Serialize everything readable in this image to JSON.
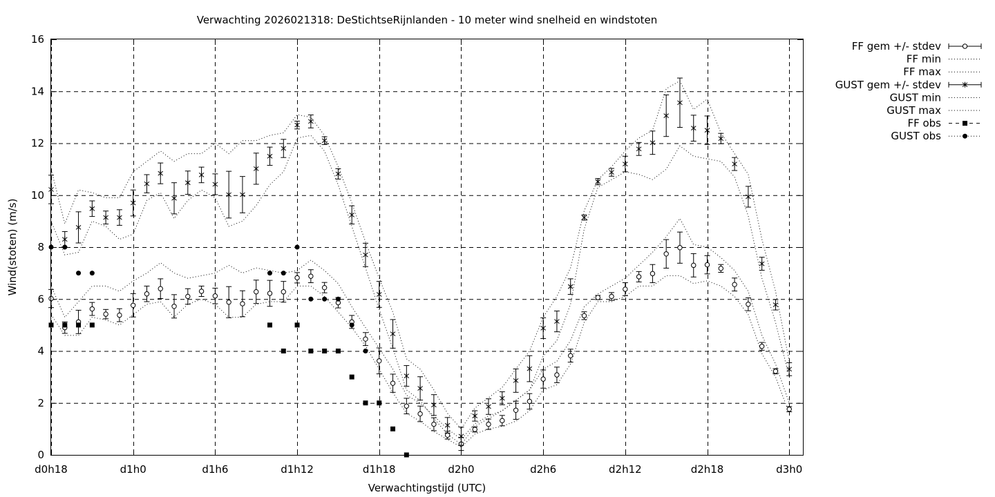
{
  "chart_data": {
    "type": "line",
    "title": "Verwachting 2026021318: DeStichtseRijnlanden - 10 meter wind snelheid en windstoten",
    "xlabel": "Verwachtingstijd (UTC)",
    "ylabel": "Wind(stoten) (m/s)",
    "xlim": [
      18,
      73
    ],
    "ylim": [
      0,
      16
    ],
    "x_ticks": [
      {
        "x": 18,
        "label": "d0h18"
      },
      {
        "x": 24,
        "label": "d1h0"
      },
      {
        "x": 30,
        "label": "d1h6"
      },
      {
        "x": 36,
        "label": "d1h12"
      },
      {
        "x": 42,
        "label": "d1h18"
      },
      {
        "x": 48,
        "label": "d2h0"
      },
      {
        "x": 54,
        "label": "d2h6"
      },
      {
        "x": 60,
        "label": "d2h12"
      },
      {
        "x": 66,
        "label": "d2h18"
      },
      {
        "x": 72,
        "label": "d3h0"
      }
    ],
    "y_ticks": [
      0,
      2,
      4,
      6,
      8,
      10,
      12,
      14,
      16
    ],
    "grid": true,
    "legend_position": "outside-right",
    "legend": [
      "FF gem +/- stdev",
      "FF min",
      "FF max",
      "GUST gem +/- stdev",
      "GUST min",
      "GUST max",
      "FF obs",
      "GUST obs"
    ],
    "x": [
      18,
      19,
      20,
      21,
      22,
      23,
      24,
      25,
      26,
      27,
      28,
      29,
      30,
      31,
      32,
      33,
      34,
      35,
      36,
      37,
      38,
      39,
      40,
      41,
      42,
      43,
      44,
      45,
      46,
      47,
      48,
      49,
      50,
      51,
      52,
      53,
      54,
      55,
      56,
      57,
      58,
      59,
      60,
      61,
      62,
      63,
      64,
      65,
      66,
      67,
      68,
      69,
      70,
      71,
      72
    ],
    "series": [
      {
        "name": "FF gem +/- stdev",
        "marker": "open-circle",
        "values": [
          6.02,
          4.9,
          5.12,
          5.62,
          5.42,
          5.38,
          5.76,
          6.2,
          6.4,
          5.72,
          6.1,
          6.3,
          6.12,
          5.88,
          5.82,
          6.28,
          6.22,
          6.28,
          6.82,
          6.88,
          6.44,
          5.86,
          5.12,
          4.46,
          3.62,
          2.76,
          1.88,
          1.58,
          1.18,
          0.76,
          0.42,
          0.98,
          1.18,
          1.32,
          1.72,
          2.06,
          2.92,
          3.08,
          3.82,
          5.36,
          6.06,
          6.1,
          6.38,
          6.86,
          6.98,
          7.74,
          7.98,
          7.3,
          7.32,
          7.18,
          6.56,
          5.8,
          4.18,
          3.22,
          1.76
        ],
        "stdev": [
          0.35,
          0.22,
          0.45,
          0.25,
          0.18,
          0.25,
          0.45,
          0.3,
          0.38,
          0.45,
          0.3,
          0.2,
          0.3,
          0.6,
          0.5,
          0.45,
          0.5,
          0.4,
          0.2,
          0.25,
          0.2,
          0.2,
          0.25,
          0.25,
          0.5,
          0.35,
          0.3,
          0.3,
          0.25,
          0.15,
          0.25,
          0.1,
          0.2,
          0.2,
          0.35,
          0.3,
          0.35,
          0.3,
          0.25,
          0.15,
          0.08,
          0.15,
          0.25,
          0.2,
          0.35,
          0.55,
          0.6,
          0.45,
          0.35,
          0.15,
          0.25,
          0.25,
          0.15,
          0.1,
          0.1
        ]
      },
      {
        "name": "FF min",
        "values": [
          5.4,
          4.6,
          4.6,
          5.3,
          5.2,
          5.0,
          5.4,
          5.8,
          5.9,
          5.3,
          5.8,
          6.0,
          5.8,
          5.3,
          5.3,
          5.8,
          5.9,
          5.9,
          6.5,
          6.5,
          6.1,
          5.5,
          4.9,
          4.2,
          3.3,
          2.4,
          1.6,
          1.3,
          0.9,
          0.6,
          0.3,
          0.8,
          1.0,
          1.1,
          1.3,
          1.7,
          2.5,
          2.7,
          3.5,
          5.1,
          5.9,
          5.9,
          6.1,
          6.5,
          6.5,
          6.9,
          6.9,
          6.6,
          6.7,
          6.5,
          6.1,
          5.4,
          3.9,
          3.0,
          1.6
        ]
      },
      {
        "name": "FF max",
        "values": [
          6.5,
          5.3,
          5.9,
          6.5,
          6.5,
          6.3,
          6.7,
          7.0,
          7.4,
          7.0,
          6.8,
          6.9,
          7.0,
          7.3,
          7.0,
          7.2,
          7.1,
          7.0,
          7.1,
          7.5,
          7.1,
          6.6,
          5.7,
          4.9,
          4.1,
          3.3,
          2.3,
          2.0,
          1.5,
          1.0,
          0.6,
          1.2,
          1.5,
          1.7,
          2.1,
          2.5,
          3.3,
          3.6,
          4.4,
          5.7,
          6.2,
          6.5,
          6.8,
          7.3,
          7.8,
          8.4,
          9.1,
          8.1,
          8.0,
          7.6,
          7.1,
          6.3,
          4.6,
          3.5,
          2.0
        ]
      },
      {
        "name": "GUST gem +/- stdev",
        "marker": "star",
        "values": [
          10.22,
          8.3,
          8.76,
          9.48,
          9.14,
          9.14,
          9.7,
          10.44,
          10.84,
          9.88,
          10.48,
          10.78,
          10.42,
          10.02,
          10.02,
          11.02,
          11.5,
          11.8,
          12.7,
          12.84,
          12.1,
          10.82,
          9.24,
          7.7,
          6.18,
          4.66,
          3.04,
          2.56,
          1.92,
          1.14,
          0.72,
          1.5,
          1.86,
          2.18,
          2.86,
          3.32,
          4.88,
          5.14,
          6.48,
          9.14,
          10.52,
          10.88,
          11.2,
          11.78,
          12.02,
          13.06,
          13.56,
          12.58,
          12.5,
          12.18,
          11.2,
          9.94,
          7.36,
          5.78,
          3.3
        ],
        "stdev": [
          0.55,
          0.3,
          0.6,
          0.3,
          0.25,
          0.3,
          0.5,
          0.35,
          0.4,
          0.6,
          0.45,
          0.3,
          0.4,
          0.9,
          0.7,
          0.6,
          0.35,
          0.35,
          0.15,
          0.25,
          0.15,
          0.2,
          0.35,
          0.45,
          0.5,
          0.55,
          0.4,
          0.45,
          0.4,
          0.3,
          0.35,
          0.2,
          0.3,
          0.25,
          0.45,
          0.5,
          0.4,
          0.4,
          0.3,
          0.1,
          0.12,
          0.15,
          0.3,
          0.25,
          0.45,
          0.8,
          0.95,
          0.5,
          0.55,
          0.2,
          0.25,
          0.4,
          0.25,
          0.2,
          0.25
        ]
      },
      {
        "name": "GUST min",
        "values": [
          9.0,
          7.7,
          7.8,
          9.0,
          8.8,
          8.3,
          8.5,
          9.8,
          10.1,
          9.1,
          9.8,
          10.2,
          9.9,
          8.8,
          9.0,
          9.6,
          10.4,
          10.9,
          12.2,
          12.3,
          11.7,
          10.4,
          8.8,
          7.2,
          5.6,
          4.1,
          2.5,
          2.1,
          1.4,
          0.8,
          0.4,
          1.1,
          1.4,
          1.7,
          2.1,
          2.5,
          3.8,
          4.4,
          5.8,
          8.7,
          10.3,
          10.6,
          10.9,
          10.8,
          10.6,
          11.0,
          11.9,
          11.5,
          11.4,
          11.3,
          10.7,
          9.2,
          6.8,
          5.1,
          3.0
        ]
      },
      {
        "name": "GUST max",
        "values": [
          11.0,
          8.9,
          10.2,
          10.1,
          9.9,
          9.9,
          10.9,
          11.3,
          11.7,
          11.3,
          11.6,
          11.6,
          12.0,
          11.6,
          12.1,
          12.1,
          12.3,
          12.4,
          13.1,
          13.0,
          12.3,
          11.1,
          9.7,
          8.2,
          6.8,
          5.5,
          3.7,
          3.3,
          2.5,
          1.6,
          1.0,
          1.8,
          2.2,
          2.6,
          3.3,
          4.0,
          5.3,
          6.1,
          7.2,
          9.4,
          10.6,
          11.1,
          11.7,
          12.2,
          12.5,
          14.1,
          14.4,
          13.3,
          13.7,
          12.4,
          11.6,
          10.8,
          8.3,
          6.3,
          3.6
        ]
      },
      {
        "name": "FF obs",
        "marker": "filled-square",
        "x": [
          18,
          19,
          20,
          21,
          34,
          35,
          36,
          37,
          38,
          39,
          40,
          41,
          42,
          43,
          44
        ],
        "values": [
          5,
          5,
          5,
          5,
          5,
          4,
          5,
          4,
          4,
          4,
          3,
          2,
          2,
          1,
          0
        ]
      },
      {
        "name": "GUST obs",
        "marker": "filled-circle",
        "x": [
          18,
          19,
          20,
          21,
          34,
          35,
          36,
          37,
          38,
          39,
          40,
          41
        ],
        "values": [
          8,
          8,
          7,
          7,
          7,
          7,
          8,
          6,
          6,
          6,
          5,
          4
        ]
      }
    ]
  }
}
